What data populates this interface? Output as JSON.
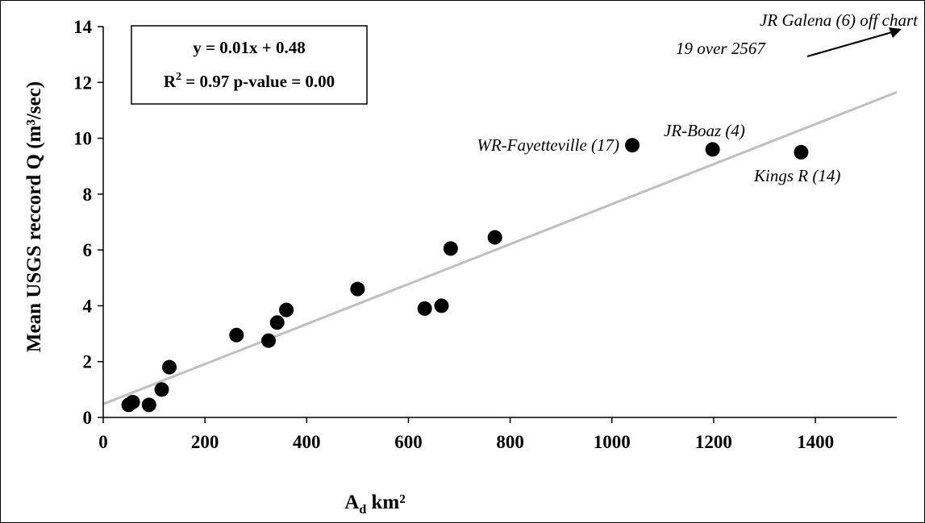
{
  "chart_data": {
    "type": "scatter",
    "xlabel": {
      "main": "A",
      "sub": "d",
      "rest": " km²"
    },
    "ylabel": "Mean USGS reccord Q (m³/sec)",
    "xlim": [
      0,
      1560
    ],
    "ylim": [
      0,
      14
    ],
    "x_ticks": [
      0,
      200,
      400,
      600,
      800,
      1000,
      1200,
      1400
    ],
    "y_ticks": [
      0,
      2,
      4,
      6,
      8,
      10,
      12,
      14
    ],
    "grid": false,
    "points": [
      {
        "x": 50,
        "y": 0.45
      },
      {
        "x": 58,
        "y": 0.55
      },
      {
        "x": 90,
        "y": 0.45
      },
      {
        "x": 115,
        "y": 1.0
      },
      {
        "x": 130,
        "y": 1.8
      },
      {
        "x": 262,
        "y": 2.95
      },
      {
        "x": 325,
        "y": 2.75
      },
      {
        "x": 342,
        "y": 3.4
      },
      {
        "x": 360,
        "y": 3.85
      },
      {
        "x": 500,
        "y": 4.6
      },
      {
        "x": 632,
        "y": 3.9
      },
      {
        "x": 665,
        "y": 4.0
      },
      {
        "x": 683,
        "y": 6.05
      },
      {
        "x": 770,
        "y": 6.45
      },
      {
        "x": 1040,
        "y": 9.75
      },
      {
        "x": 1198,
        "y": 9.6
      },
      {
        "x": 1372,
        "y": 9.5
      }
    ],
    "trendline": {
      "equation": "y = 0.01x + 0.48",
      "stats": {
        "r": "R",
        "sup": "2",
        "rest": " = 0.97 p-value = 0.00"
      },
      "x": [
        0,
        1560
      ],
      "y": [
        0.48,
        11.65
      ],
      "color": "#bfbfbf"
    },
    "annotations": [
      {
        "text": "WR-Fayetteville (17)",
        "x": 1040,
        "y": 9.75
      },
      {
        "text": "JR-Boaz (4)",
        "x": 1198,
        "y": 9.6
      },
      {
        "text": "Kings R (14)",
        "x": 1372,
        "y": 9.5
      }
    ],
    "offchart_note": {
      "line1": "JR Galena (6) off chart",
      "line2": "19 over 2567"
    }
  }
}
